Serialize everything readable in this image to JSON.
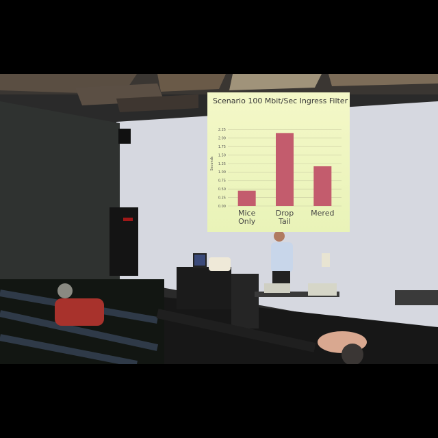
{
  "slide": {
    "title": "Scenario 100 Mbit/Sec Ingress Filter"
  },
  "chart_data": {
    "type": "bar",
    "title": "Scenario 100 Mbit/Sec Ingress Filter",
    "ylabel": "Seconds",
    "xlabel": "",
    "categories": [
      "Mice Only",
      "Drop Tail",
      "Mered"
    ],
    "category_lines": [
      [
        "Mice",
        "Only"
      ],
      [
        "Drop",
        "Tail"
      ],
      [
        "Mered"
      ]
    ],
    "values": [
      0.45,
      2.15,
      1.17
    ],
    "ylim": [
      0,
      2.5
    ],
    "yticks": [
      "0.00",
      "0.25",
      "0.50",
      "0.75",
      "1.00",
      "1.25",
      "1.50",
      "1.75",
      "2.00",
      "2.25"
    ],
    "grid": true,
    "colors": {
      "bar": "#c35c6d"
    }
  }
}
